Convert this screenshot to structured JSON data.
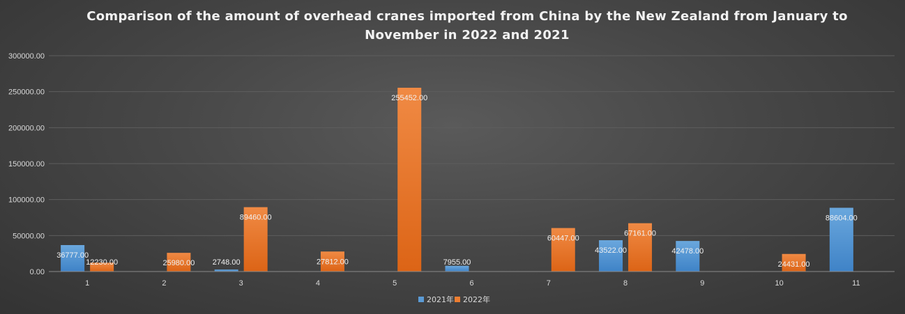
{
  "chart_data": {
    "type": "bar",
    "title": "Comparison of the amount of overhead cranes imported from China by the New Zealand from January to November in 2022 and 2021",
    "xlabel": "",
    "ylabel": "",
    "categories": [
      "1",
      "2",
      "3",
      "4",
      "5",
      "6",
      "7",
      "8",
      "9",
      "10",
      "11"
    ],
    "series": [
      {
        "name": "2021年",
        "color": "#5b9bd5",
        "values": [
          36777,
          null,
          2748,
          null,
          null,
          7955,
          null,
          43522,
          42478,
          null,
          88604
        ],
        "labels": [
          "36777.00",
          "",
          "2748.00",
          "",
          "",
          "7955.00",
          "",
          "43522.00",
          "42478.00",
          "",
          "88604.00"
        ]
      },
      {
        "name": "2022年",
        "color": "#ed7d31",
        "values": [
          12230,
          25980,
          89460,
          27812,
          255452,
          null,
          60447,
          67161,
          null,
          24431,
          null
        ],
        "labels": [
          "12230.00",
          "25980.00",
          "89460.00",
          "27812.00",
          "255452.00",
          "",
          "60447.00",
          "67161.00",
          "",
          "24431.00",
          ""
        ]
      }
    ],
    "ylim": [
      0,
      300000
    ],
    "yticks": [
      "0.00",
      "50000.00",
      "100000.00",
      "150000.00",
      "200000.00",
      "250000.00",
      "300000.00"
    ],
    "grid": true,
    "legend_position": "bottom"
  }
}
